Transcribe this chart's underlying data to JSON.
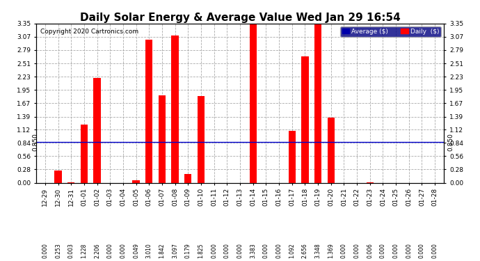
{
  "title": "Daily Solar Energy & Average Value Wed Jan 29 16:54",
  "copyright": "Copyright 2020 Cartronics.com",
  "categories": [
    "12-29",
    "12-30",
    "12-31",
    "01-01",
    "01-02",
    "01-03",
    "01-04",
    "01-05",
    "01-06",
    "01-07",
    "01-08",
    "01-09",
    "01-10",
    "01-11",
    "01-12",
    "01-13",
    "01-14",
    "01-15",
    "01-16",
    "01-17",
    "01-18",
    "01-19",
    "01-20",
    "01-21",
    "01-22",
    "01-23",
    "01-24",
    "01-25",
    "01-26",
    "01-27",
    "01-28"
  ],
  "values": [
    0.0,
    0.253,
    0.003,
    1.228,
    2.206,
    0.0,
    0.0,
    0.049,
    3.01,
    1.842,
    3.097,
    0.179,
    1.825,
    0.0,
    0.0,
    0.0,
    3.383,
    0.0,
    0.0,
    1.092,
    2.656,
    3.348,
    1.369,
    0.0,
    0.0,
    0.006,
    0.0,
    0.0,
    0.0,
    0.0,
    0.0
  ],
  "average_value": 0.85,
  "bar_color": "#FF0000",
  "avg_line_color": "#0000CC",
  "background_color": "#FFFFFF",
  "plot_bg_color": "#FFFFFF",
  "grid_color": "#AAAAAA",
  "yticks": [
    0.0,
    0.28,
    0.56,
    0.84,
    1.12,
    1.39,
    1.67,
    1.95,
    2.23,
    2.51,
    2.79,
    3.07,
    3.35
  ],
  "ylim": [
    0.0,
    3.35
  ],
  "legend_bg_color": "#000080",
  "legend_avg_color": "#0000AA",
  "legend_daily_color": "#FF0000",
  "avg_label": "Average ($)",
  "daily_label": "Daily  ($)",
  "avg_annotation": "0.850",
  "title_fontsize": 11,
  "tick_fontsize": 6.5,
  "value_fontsize": 5.5,
  "copyright_fontsize": 6.5
}
